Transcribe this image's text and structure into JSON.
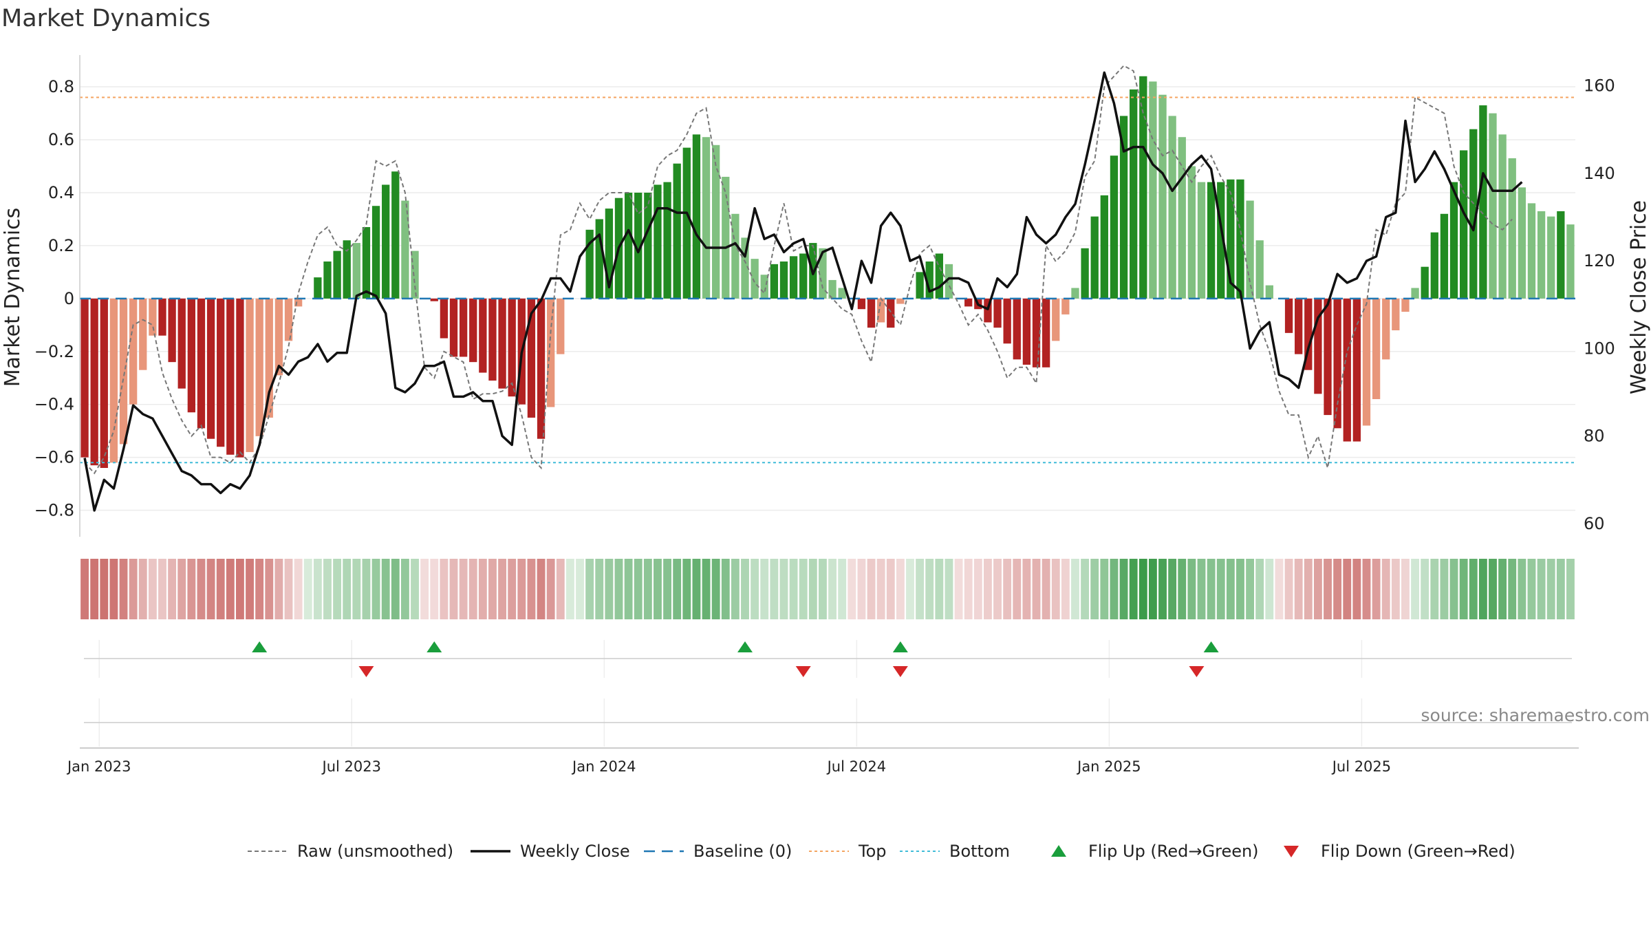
{
  "chart_data": {
    "type": "bar",
    "title": "Market Dynamics",
    "ylabel": "Market Dynamics",
    "y2label": "Weekly Close Price",
    "ylim": [
      -0.9,
      0.92
    ],
    "y2lim": [
      57,
      167
    ],
    "yticks": [
      "−0.8",
      "−0.6",
      "−0.4",
      "−0.2",
      "0",
      "0.2",
      "0.4",
      "0.6",
      "0.8"
    ],
    "yticks_values": [
      -0.8,
      -0.6,
      -0.4,
      -0.2,
      0,
      0.2,
      0.4,
      0.6,
      0.8
    ],
    "y2ticks": [
      "60",
      "80",
      "100",
      "120",
      "140",
      "160"
    ],
    "y2ticks_values": [
      60,
      80,
      100,
      120,
      140,
      160
    ],
    "xticks": [
      "Jan 2023",
      "Jul 2023",
      "Jan 2024",
      "Jul 2024",
      "Jan 2025",
      "Jul 2025"
    ],
    "xticks_weeks": [
      0,
      26,
      52,
      78,
      104,
      130
    ],
    "start_week_offset": -1.5,
    "top_line": 0.76,
    "bottom_line": -0.62,
    "baseline": 0,
    "grid": true,
    "legend_position": "bottom",
    "colors": {
      "strong_red": "#b22222",
      "light_red": "#e8967a",
      "strong_green": "#228b22",
      "light_green": "#80c080",
      "close": "#111111",
      "raw": "#777777",
      "baseline": "#1f77b4",
      "top": "#f4a460",
      "bottom": "#40bcd8",
      "flip_up": "#1a9e3c",
      "flip_down": "#d62728"
    },
    "momentum": [
      -0.6,
      -0.63,
      -0.64,
      -0.62,
      -0.55,
      -0.4,
      -0.27,
      -0.14,
      -0.14,
      -0.24,
      -0.34,
      -0.43,
      -0.49,
      -0.53,
      -0.56,
      -0.59,
      -0.6,
      -0.58,
      -0.52,
      -0.45,
      -0.29,
      -0.16,
      -0.03,
      0.0,
      0.08,
      0.14,
      0.18,
      0.22,
      0.21,
      0.27,
      0.35,
      0.43,
      0.48,
      0.37,
      0.18,
      0.0,
      -0.01,
      -0.15,
      -0.22,
      -0.22,
      -0.24,
      -0.28,
      -0.31,
      -0.34,
      -0.37,
      -0.4,
      -0.45,
      -0.53,
      -0.41,
      -0.21,
      0.0,
      0.0,
      0.26,
      0.3,
      0.34,
      0.38,
      0.4,
      0.4,
      0.4,
      0.43,
      0.44,
      0.51,
      0.57,
      0.62,
      0.61,
      0.58,
      0.46,
      0.32,
      0.23,
      0.15,
      0.09,
      0.13,
      0.14,
      0.16,
      0.17,
      0.21,
      0.19,
      0.07,
      0.04,
      0.0,
      -0.04,
      -0.11,
      -0.09,
      -0.11,
      -0.02,
      0.0,
      0.1,
      0.14,
      0.17,
      0.13,
      0.0,
      -0.03,
      -0.04,
      -0.09,
      -0.11,
      -0.17,
      -0.23,
      -0.25,
      -0.26,
      -0.26,
      -0.16,
      -0.06,
      0.04,
      0.19,
      0.31,
      0.39,
      0.54,
      0.69,
      0.79,
      0.84,
      0.82,
      0.77,
      0.69,
      0.61,
      0.5,
      0.44,
      0.44,
      0.44,
      0.45,
      0.45,
      0.37,
      0.22,
      0.05,
      0.0,
      -0.13,
      -0.21,
      -0.27,
      -0.36,
      -0.44,
      -0.49,
      -0.54,
      -0.54,
      -0.48,
      -0.38,
      -0.23,
      -0.12,
      -0.05,
      0.04,
      0.12,
      0.25,
      0.32,
      0.44,
      0.56,
      0.64,
      0.73,
      0.7,
      0.62,
      0.53,
      0.42,
      0.36,
      0.33,
      0.31,
      0.33,
      0.28
    ],
    "raw": [
      -0.62,
      -0.66,
      -0.6,
      -0.5,
      -0.3,
      -0.1,
      -0.08,
      -0.1,
      -0.28,
      -0.38,
      -0.46,
      -0.52,
      -0.48,
      -0.6,
      -0.6,
      -0.62,
      -0.58,
      -0.62,
      -0.56,
      -0.44,
      -0.32,
      -0.18,
      0.02,
      0.14,
      0.24,
      0.27,
      0.2,
      0.18,
      0.22,
      0.28,
      0.52,
      0.5,
      0.52,
      0.4,
      0.05,
      -0.26,
      -0.3,
      -0.2,
      -0.22,
      -0.24,
      -0.38,
      -0.36,
      -0.36,
      -0.35,
      -0.32,
      -0.44,
      -0.6,
      -0.64,
      -0.12,
      0.24,
      0.26,
      0.36,
      0.3,
      0.37,
      0.4,
      0.4,
      0.4,
      0.32,
      0.35,
      0.5,
      0.54,
      0.56,
      0.62,
      0.7,
      0.72,
      0.5,
      0.4,
      0.2,
      0.14,
      0.06,
      0.02,
      0.2,
      0.36,
      0.18,
      0.2,
      0.2,
      0.04,
      0.0,
      -0.04,
      -0.06,
      -0.16,
      -0.24,
      0.0,
      -0.05,
      -0.1,
      0.05,
      0.17,
      0.2,
      0.12,
      0.05,
      -0.02,
      -0.1,
      -0.06,
      -0.12,
      -0.2,
      -0.3,
      -0.26,
      -0.26,
      -0.32,
      0.2,
      0.14,
      0.18,
      0.25,
      0.46,
      0.52,
      0.8,
      0.84,
      0.88,
      0.86,
      0.7,
      0.6,
      0.54,
      0.56,
      0.5,
      0.44,
      0.5,
      0.54,
      0.46,
      0.4,
      0.26,
      0.06,
      -0.1,
      -0.2,
      -0.35,
      -0.44,
      -0.44,
      -0.6,
      -0.52,
      -0.64,
      -0.4,
      -0.2,
      -0.1,
      -0.02,
      0.26,
      0.24,
      0.36,
      0.4,
      0.76,
      0.74,
      0.72,
      0.7,
      0.5,
      0.4,
      0.36,
      0.32,
      0.28,
      0.26,
      0.3
    ],
    "close": [
      75,
      63,
      70,
      68,
      77,
      87,
      85,
      84,
      80,
      76,
      72,
      71,
      69,
      69,
      67,
      69,
      68,
      71,
      78,
      90,
      96,
      94,
      97,
      98,
      101,
      97,
      99,
      99,
      112,
      113,
      112,
      108,
      91,
      90,
      92,
      96,
      96,
      97,
      89,
      89,
      90,
      88,
      88,
      80,
      78,
      99,
      108,
      111,
      116,
      116,
      113,
      121,
      124,
      126,
      114,
      123,
      127,
      122,
      127,
      132,
      132,
      131,
      131,
      126,
      123,
      123,
      123,
      124,
      121,
      132,
      125,
      126,
      122,
      124,
      125,
      117,
      122,
      123,
      116,
      109,
      120,
      115,
      128,
      131,
      128,
      120,
      121,
      113,
      114,
      116,
      116,
      115,
      110,
      109,
      116,
      114,
      117,
      130,
      126,
      124,
      126,
      130,
      133,
      142,
      152,
      163,
      156,
      145,
      146,
      146,
      142,
      140,
      136,
      139,
      142,
      144,
      141,
      128,
      115,
      113,
      100,
      104,
      106,
      94,
      93,
      91,
      100,
      107,
      110,
      117,
      115,
      116,
      120,
      121,
      130,
      131,
      152,
      138,
      141,
      145,
      141,
      136,
      131,
      127,
      140,
      136,
      136,
      136,
      138
    ]
  },
  "flips": {
    "up_weeks": [
      16.5,
      34.5,
      66.5,
      82.5,
      114.5
    ],
    "down_weeks": [
      27.5,
      72.5,
      82.5,
      113.0
    ]
  },
  "legend": {
    "items": [
      {
        "label": "Raw (unsmoothed)",
        "kind": "line-dotted"
      },
      {
        "label": "Weekly Close",
        "kind": "line-solid"
      },
      {
        "label": "Baseline (0)",
        "kind": "line-dashed"
      },
      {
        "label": "Top",
        "kind": "line-dotted-orange"
      },
      {
        "label": "Bottom",
        "kind": "line-dotted-cyan"
      },
      {
        "label": "Flip Up (Red→Green)",
        "kind": "triangle-up"
      },
      {
        "label": "Flip Down (Green→Red)",
        "kind": "triangle-down"
      }
    ]
  },
  "source": "source: sharemaestro.com"
}
